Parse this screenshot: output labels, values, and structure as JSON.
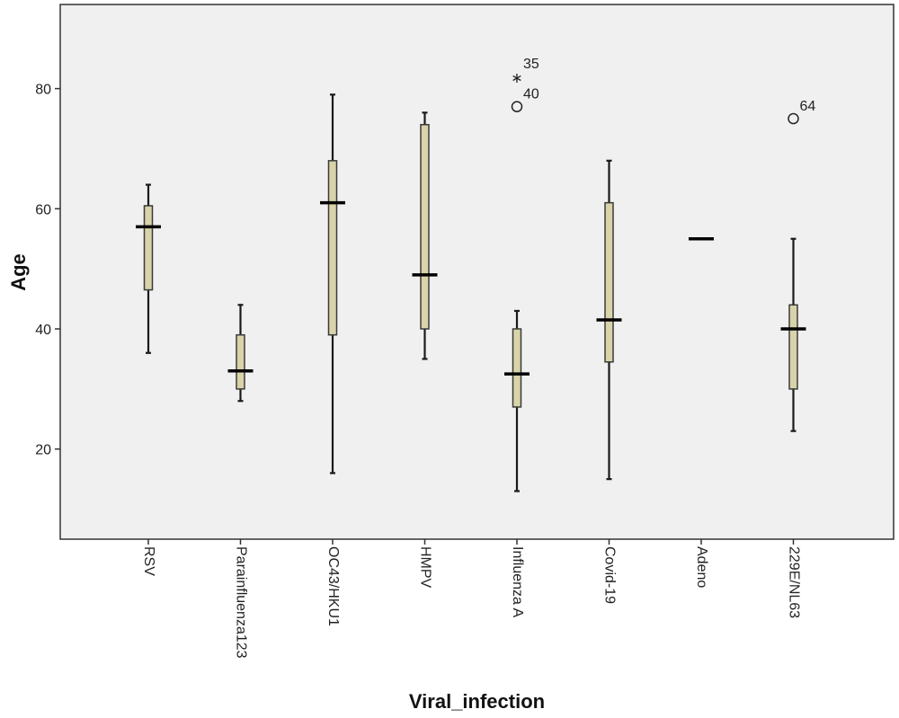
{
  "colors": {
    "plot_background": "#f0f0f0",
    "box_fill": "#d8d3a8",
    "box_stroke": "#3a3a3a",
    "median": "#000000",
    "whisker": "#1a1a1a",
    "axis": "#333333"
  },
  "chart_data": {
    "type": "boxplot",
    "xlabel": "Viral_infection",
    "ylabel": "Age",
    "ylim": [
      5,
      94
    ],
    "y_ticks": [
      20,
      40,
      60,
      80
    ],
    "grid": false,
    "categories": [
      "RSV",
      "Parainfluenza123",
      "OC43/HKU1",
      "HMPV",
      "Influenza A",
      "Covid-19",
      "Adeno",
      "229E/NL63"
    ],
    "boxes": [
      {
        "category": "RSV",
        "min": 36,
        "q1": 46.5,
        "median": 57,
        "q3": 60.5,
        "max": 64,
        "outliers": []
      },
      {
        "category": "Parainfluenza123",
        "min": 28,
        "q1": 30,
        "median": 33,
        "q3": 39,
        "max": 44,
        "outliers": []
      },
      {
        "category": "OC43/HKU1",
        "min": 16,
        "q1": 39,
        "median": 61,
        "q3": 68,
        "max": 79,
        "outliers": []
      },
      {
        "category": "HMPV",
        "min": 35,
        "q1": 40,
        "median": 49,
        "q3": 74,
        "max": 76,
        "outliers": []
      },
      {
        "category": "Influenza A",
        "min": 13,
        "q1": 27,
        "median": 32.5,
        "q3": 40,
        "max": 43,
        "outliers": [
          {
            "value": 82,
            "marker": "star",
            "label": "35"
          },
          {
            "value": 77,
            "marker": "circle",
            "label": "40"
          }
        ]
      },
      {
        "category": "Covid-19",
        "min": 15,
        "q1": 34.5,
        "median": 41.5,
        "q3": 61,
        "max": 68,
        "outliers": []
      },
      {
        "category": "Adeno",
        "min": 55,
        "q1": 55,
        "median": 55,
        "q3": 55,
        "max": 55,
        "outliers": []
      },
      {
        "category": "229E/NL63",
        "min": 23,
        "q1": 30,
        "median": 40,
        "q3": 44,
        "max": 55,
        "outliers": [
          {
            "value": 75,
            "marker": "circle",
            "label": "64"
          }
        ]
      }
    ]
  }
}
